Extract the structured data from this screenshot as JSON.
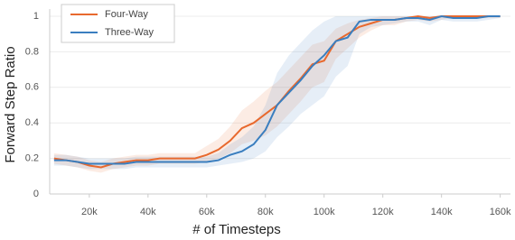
{
  "chart_data": {
    "type": "line",
    "xlabel": "# of Timesteps",
    "ylabel": "Forward Step Ratio",
    "x": [
      8000,
      12000,
      16000,
      20000,
      24000,
      28000,
      32000,
      36000,
      40000,
      44000,
      48000,
      52000,
      56000,
      60000,
      64000,
      68000,
      72000,
      76000,
      80000,
      84000,
      88000,
      92000,
      96000,
      100000,
      104000,
      108000,
      112000,
      116000,
      120000,
      124000,
      128000,
      132000,
      136000,
      140000,
      144000,
      148000,
      152000,
      156000,
      160000
    ],
    "series": [
      {
        "name": "Four-Way",
        "color": "#e8692e",
        "values": [
          0.2,
          0.19,
          0.18,
          0.16,
          0.15,
          0.17,
          0.18,
          0.19,
          0.19,
          0.2,
          0.2,
          0.2,
          0.2,
          0.22,
          0.25,
          0.3,
          0.37,
          0.4,
          0.45,
          0.5,
          0.58,
          0.65,
          0.73,
          0.75,
          0.86,
          0.9,
          0.94,
          0.96,
          0.98,
          0.98,
          0.99,
          1.0,
          0.99,
          1.0,
          1.0,
          1.0,
          1.0,
          1.0,
          1.0
        ],
        "lower": [
          0.17,
          0.16,
          0.15,
          0.13,
          0.12,
          0.14,
          0.15,
          0.16,
          0.16,
          0.17,
          0.17,
          0.17,
          0.17,
          0.18,
          0.2,
          0.23,
          0.28,
          0.3,
          0.33,
          0.38,
          0.45,
          0.52,
          0.6,
          0.63,
          0.76,
          0.82,
          0.88,
          0.92,
          0.95,
          0.95,
          0.97,
          0.98,
          0.97,
          0.98,
          0.99,
          0.99,
          0.99,
          0.99,
          0.99
        ],
        "upper": [
          0.23,
          0.22,
          0.21,
          0.19,
          0.18,
          0.2,
          0.21,
          0.22,
          0.22,
          0.23,
          0.23,
          0.23,
          0.23,
          0.27,
          0.31,
          0.38,
          0.47,
          0.52,
          0.58,
          0.63,
          0.7,
          0.77,
          0.84,
          0.86,
          0.93,
          0.96,
          0.98,
          0.99,
          1,
          1,
          1,
          1,
          1,
          1,
          1,
          1,
          1,
          1,
          1
        ]
      },
      {
        "name": "Three-Way",
        "color": "#3a7ebf",
        "values": [
          0.19,
          0.19,
          0.18,
          0.17,
          0.17,
          0.17,
          0.17,
          0.18,
          0.18,
          0.18,
          0.18,
          0.18,
          0.18,
          0.18,
          0.19,
          0.22,
          0.24,
          0.28,
          0.36,
          0.5,
          0.57,
          0.64,
          0.72,
          0.78,
          0.86,
          0.88,
          0.97,
          0.98,
          0.98,
          0.98,
          0.99,
          0.99,
          0.98,
          1.0,
          0.99,
          0.99,
          0.99,
          1.0,
          1.0
        ],
        "lower": [
          0.16,
          0.16,
          0.15,
          0.14,
          0.14,
          0.14,
          0.14,
          0.15,
          0.15,
          0.15,
          0.15,
          0.15,
          0.15,
          0.15,
          0.16,
          0.17,
          0.18,
          0.2,
          0.24,
          0.32,
          0.38,
          0.45,
          0.5,
          0.55,
          0.66,
          0.72,
          0.9,
          0.94,
          0.95,
          0.96,
          0.97,
          0.97,
          0.95,
          0.98,
          0.97,
          0.97,
          0.97,
          0.98,
          0.99
        ],
        "upper": [
          0.22,
          0.22,
          0.21,
          0.2,
          0.2,
          0.2,
          0.2,
          0.21,
          0.21,
          0.21,
          0.21,
          0.21,
          0.21,
          0.21,
          0.23,
          0.28,
          0.32,
          0.38,
          0.5,
          0.68,
          0.78,
          0.85,
          0.92,
          0.97,
          1,
          1,
          1,
          1,
          1,
          1,
          1,
          1,
          1,
          1,
          1,
          1,
          1,
          1,
          1
        ]
      }
    ],
    "xlim": [
      6500,
      163500
    ],
    "xticks": [
      {
        "value": 20000,
        "label": "20k"
      },
      {
        "value": 40000,
        "label": "40k"
      },
      {
        "value": 60000,
        "label": "60k"
      },
      {
        "value": 80000,
        "label": "80k"
      },
      {
        "value": 100000,
        "label": "100k"
      },
      {
        "value": 120000,
        "label": "120k"
      },
      {
        "value": 140000,
        "label": "140k"
      },
      {
        "value": 160000,
        "label": "160k"
      }
    ],
    "ylim": [
      0,
      1
    ],
    "yticks": [
      0,
      0.2,
      0.4,
      0.6,
      0.8,
      1
    ],
    "grid": true,
    "legend": "upper left"
  }
}
